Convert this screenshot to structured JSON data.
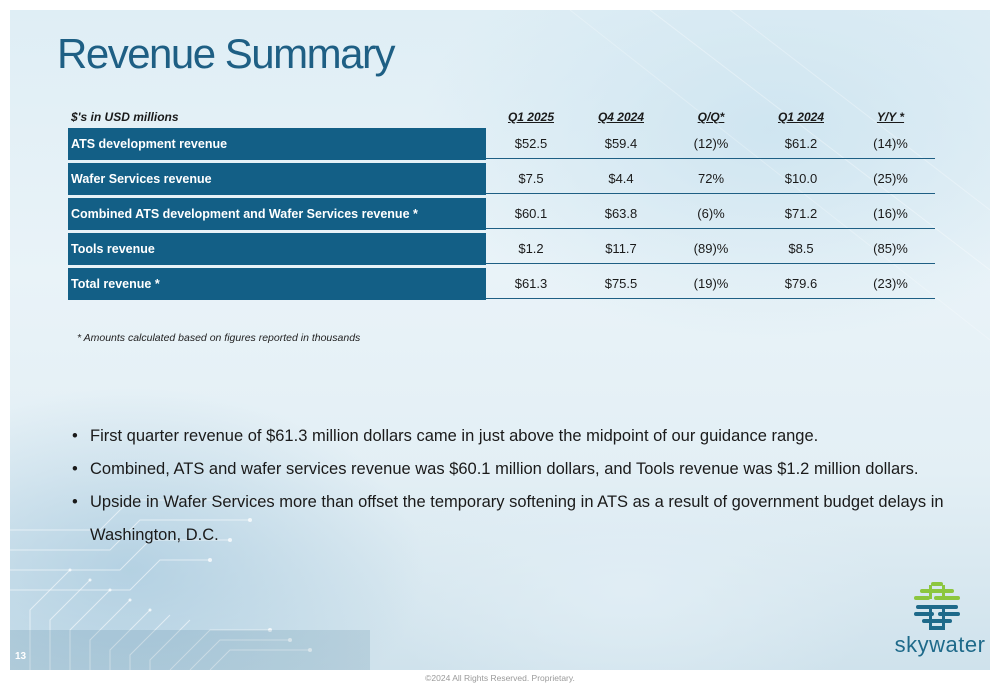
{
  "title": "Revenue Summary",
  "table": {
    "unit_label": "$'s in USD millions",
    "columns": [
      "Q1 2025",
      "Q4 2024",
      "Q/Q*",
      "Q1 2024",
      "Y/Y *"
    ],
    "rows": [
      {
        "label": "ATS development revenue",
        "values": [
          "$52.5",
          "$59.4",
          "(12)%",
          "$61.2",
          "(14)%"
        ]
      },
      {
        "label": "Wafer Services revenue",
        "values": [
          "$7.5",
          "$4.4",
          "72%",
          "$10.0",
          "(25)%"
        ]
      },
      {
        "label": "Combined ATS development and Wafer Services revenue *",
        "values": [
          "$60.1",
          "$63.8",
          "(6)%",
          "$71.2",
          "(16)%"
        ]
      },
      {
        "label": "Tools revenue",
        "values": [
          "$1.2",
          "$11.7",
          "(89)%",
          "$8.5",
          "(85)%"
        ]
      },
      {
        "label": "Total revenue *",
        "values": [
          "$61.3",
          "$75.5",
          "(19)%",
          "$79.6",
          "(23)%"
        ]
      }
    ]
  },
  "footnote": "* Amounts calculated based on figures reported in thousands",
  "bullets": [
    "First quarter revenue of $61.3 million dollars came in just above the midpoint of our guidance range.",
    "Combined, ATS and wafer services revenue was $60.1 million dollars, and Tools revenue was $1.2 million dollars.",
    "Upside in Wafer Services more than offset the temporary softening in ATS as a result of government budget delays in Washington, D.C."
  ],
  "page_number": "13",
  "logo": {
    "text": "skywater",
    "icon": "skywater-logo-icon"
  },
  "copyright": "©2024 All Rights Reserved. Proprietary.",
  "colors": {
    "title": "#1e5f84",
    "row_label_bg": "#135f86",
    "logo_green": "#8cc63f",
    "logo_blue": "#1e6a8a"
  }
}
